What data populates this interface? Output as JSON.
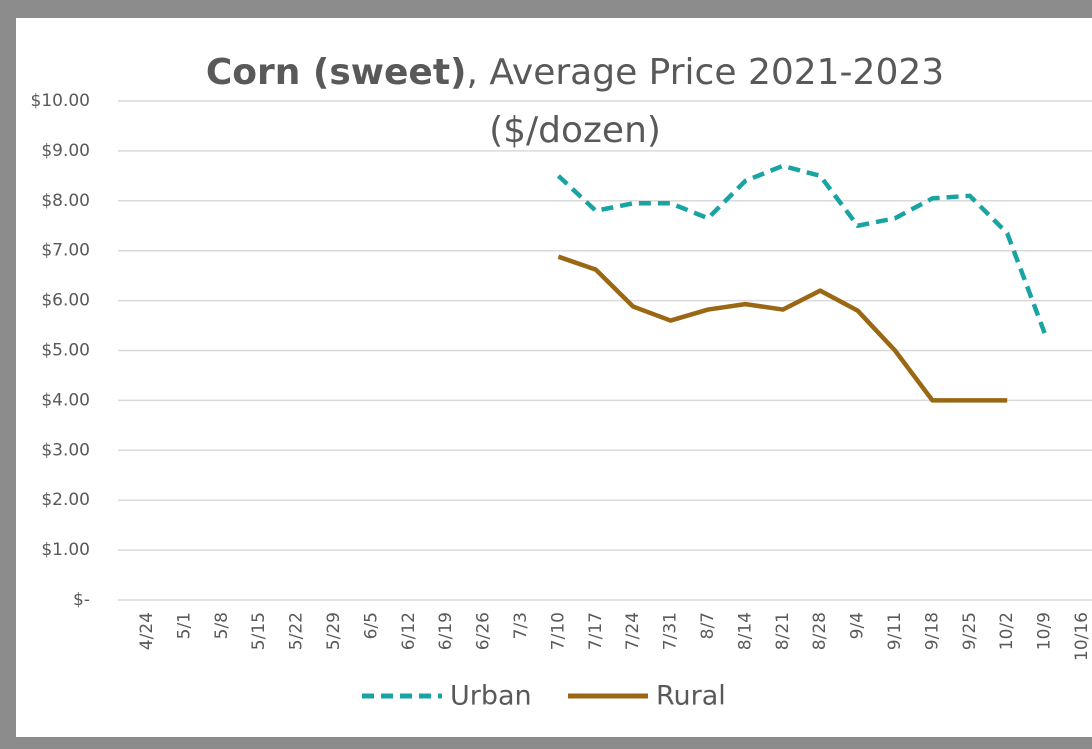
{
  "chart_data": {
    "type": "line",
    "title_parts": [
      "Corn (sweet)",
      ", Average Price 2021-2023",
      "($/dozen)"
    ],
    "categories": [
      "4/24",
      "5/1",
      "5/8",
      "5/15",
      "5/22",
      "5/29",
      "6/5",
      "6/12",
      "6/19",
      "6/26",
      "7/3",
      "7/10",
      "7/17",
      "7/24",
      "7/31",
      "8/7",
      "8/14",
      "8/21",
      "8/28",
      "9/4",
      "9/11",
      "9/18",
      "9/25",
      "10/2",
      "10/9",
      "10/16"
    ],
    "series": [
      {
        "name": "Urban",
        "color": "#1aa3a3",
        "dashed": true,
        "values": [
          null,
          null,
          null,
          null,
          null,
          null,
          null,
          null,
          null,
          null,
          null,
          8.5,
          7.8,
          7.95,
          7.95,
          7.65,
          8.4,
          8.7,
          8.5,
          7.5,
          7.65,
          8.05,
          8.1,
          7.35,
          5.35,
          null
        ]
      },
      {
        "name": "Rural",
        "color": "#9a6714",
        "dashed": false,
        "values": [
          null,
          null,
          null,
          null,
          null,
          null,
          null,
          null,
          null,
          null,
          null,
          6.88,
          6.62,
          5.88,
          5.6,
          5.82,
          5.93,
          5.82,
          6.2,
          5.8,
          5.0,
          4.0,
          4.0,
          4.0,
          null,
          null
        ]
      }
    ],
    "ylim": [
      0,
      10
    ],
    "yticks": [
      {
        "value": 0,
        "label": "$-"
      },
      {
        "value": 1,
        "label": "$1.00"
      },
      {
        "value": 2,
        "label": "$2.00"
      },
      {
        "value": 3,
        "label": "$3.00"
      },
      {
        "value": 4,
        "label": "$4.00"
      },
      {
        "value": 5,
        "label": "$5.00"
      },
      {
        "value": 6,
        "label": "$6.00"
      },
      {
        "value": 7,
        "label": "$7.00"
      },
      {
        "value": 8,
        "label": "$8.00"
      },
      {
        "value": 9,
        "label": "$9.00"
      },
      {
        "value": 10,
        "label": "$10.00"
      }
    ],
    "grid": true,
    "legend": "bottom"
  }
}
